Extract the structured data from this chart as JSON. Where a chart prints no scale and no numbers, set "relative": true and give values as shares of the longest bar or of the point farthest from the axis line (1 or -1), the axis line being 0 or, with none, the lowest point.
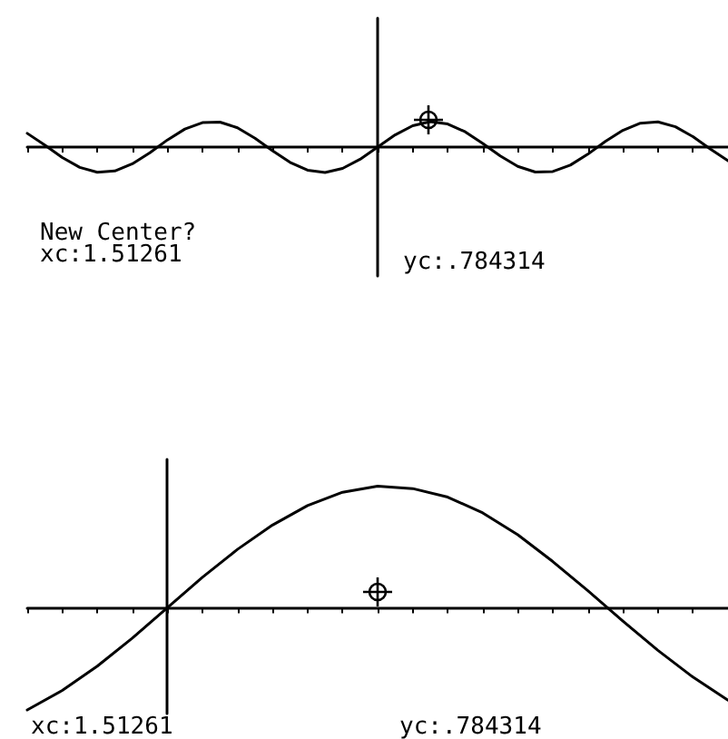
{
  "chart_data": [
    {
      "type": "line",
      "relative": true,
      "tick_labels": false,
      "categories": [
        null,
        null,
        null,
        null,
        null,
        null,
        null,
        null,
        null,
        null,
        null,
        null,
        null,
        null,
        null,
        null,
        null,
        null,
        null,
        null,
        null,
        null,
        null,
        null,
        null,
        null,
        null,
        null,
        null,
        null,
        null,
        null,
        null,
        null,
        null,
        null,
        null,
        null,
        null,
        null,
        null
      ],
      "annotations": [
        "New Center?",
        "xc:1.51261",
        "yc:.784314"
      ],
      "series": [
        {
          "marker": "none",
          "color": "#000000",
          "values": [
            0.54,
            0.08,
            -0.41,
            -0.8,
            -0.99,
            -0.94,
            -0.66,
            -0.22,
            0.28,
            0.71,
            0.96,
            0.98,
            0.76,
            0.35,
            -0.14,
            -0.6,
            -0.91,
            -1.0,
            -0.84,
            -0.48,
            0,
            0.48,
            0.84,
            1.0,
            0.91,
            0.6,
            0.14,
            -0.35,
            -0.76,
            -0.98,
            -0.96,
            -0.71,
            -0.28,
            0.22,
            0.66,
            0.94,
            0.99,
            0.8,
            0.41,
            -0.08,
            -0.54
          ]
        }
      ]
    },
    {
      "type": "line",
      "relative": true,
      "tick_labels": false,
      "categories": [
        null,
        null,
        null,
        null,
        null,
        null,
        null,
        null,
        null,
        null,
        null,
        null,
        null,
        null,
        null,
        null,
        null,
        null,
        null,
        null,
        null
      ],
      "annotations": [
        "xc:1.51261",
        "yc:.784314"
      ],
      "series": [
        {
          "marker": "none",
          "color": "#000000",
          "values": [
            -0.84,
            -0.68,
            -0.48,
            -0.25,
            0,
            0.25,
            0.48,
            0.68,
            0.84,
            0.95,
            1.0,
            0.98,
            0.91,
            0.78,
            0.6,
            0.38,
            0.14,
            -0.11,
            -0.35,
            -0.57,
            -0.76
          ]
        }
      ]
    }
  ]
}
